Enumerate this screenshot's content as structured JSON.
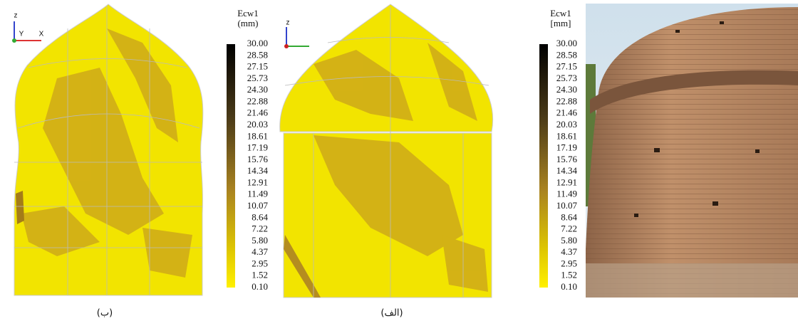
{
  "panels": [
    {
      "legend": {
        "title": "Ecw1",
        "unit": "(mm)",
        "ticks": [
          "30.00",
          "28.58",
          "27.15",
          "25.73",
          "24.30",
          "22.88",
          "21.46",
          "20.03",
          "18.61",
          "17.19",
          "15.76",
          "14.34",
          "12.91",
          "11.49",
          "10.07",
          "8.64",
          "7.22",
          "5.80",
          "4.37",
          "2.95",
          "1.52",
          "0.10"
        ]
      },
      "axes": [
        "z",
        "Y",
        "X"
      ],
      "caption": "(ب)"
    },
    {
      "legend": {
        "title": "Ecw1",
        "unit": "[mm]",
        "ticks": [
          "30.00",
          "28.58",
          "27.15",
          "25.73",
          "24.30",
          "22.88",
          "21.46",
          "20.03",
          "18.61",
          "17.19",
          "15.76",
          "14.34",
          "12.91",
          "11.49",
          "10.07",
          "8.64",
          "7.22",
          "5.80",
          "4.37",
          "2.95",
          "1.52",
          "0.10"
        ]
      },
      "axes": [
        "z"
      ],
      "caption": "(الف)"
    }
  ]
}
